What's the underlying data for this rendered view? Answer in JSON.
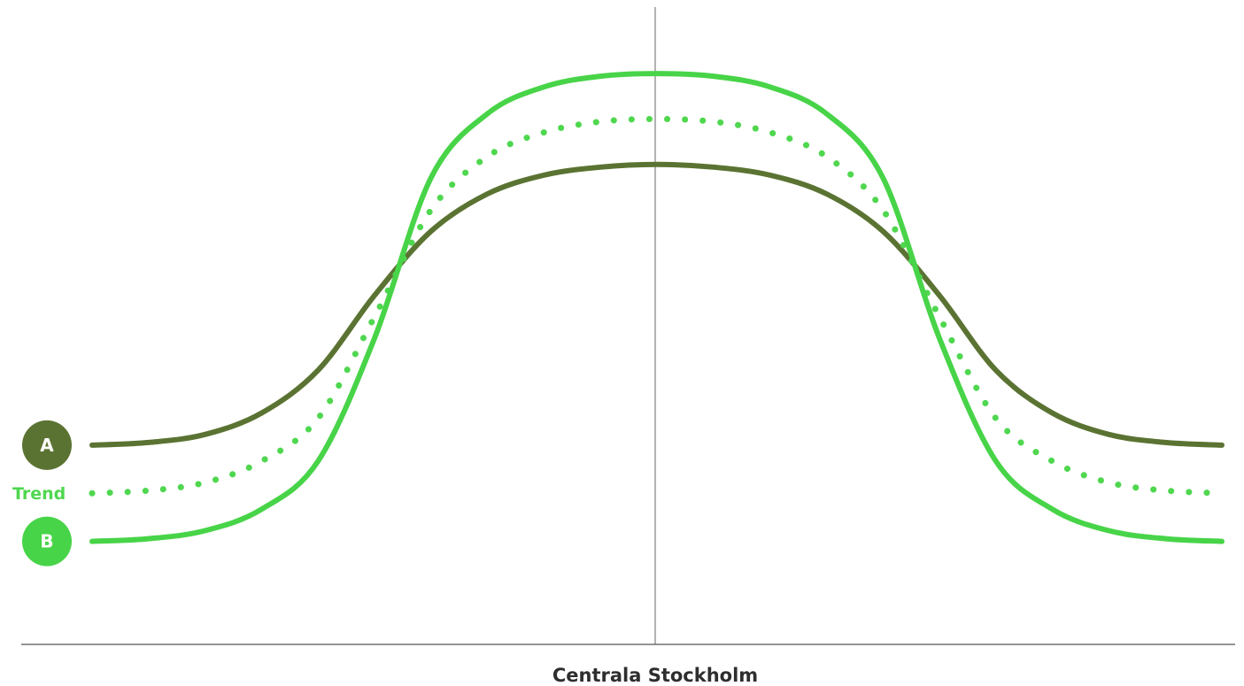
{
  "chart_data": {
    "type": "line",
    "title": "",
    "xlabel": "Centrala Stockholm",
    "ylabel": "",
    "x": [
      -1,
      -0.9,
      -0.8,
      -0.7,
      -0.6,
      -0.5,
      -0.4,
      -0.3,
      -0.2,
      -0.1,
      0,
      0.1,
      0.2,
      0.3,
      0.4,
      0.5,
      0.6,
      0.7,
      0.8,
      0.9,
      1
    ],
    "ylim": [
      0,
      100
    ],
    "grid": false,
    "center_line": true,
    "series": [
      {
        "name": "A",
        "badge": "A",
        "style": "solid",
        "color": "#5b7332",
        "values": [
          28,
          28.5,
          30,
          34,
          42,
          56,
          68,
          75,
          78.5,
          80,
          80.5,
          80,
          78.5,
          75,
          68,
          56,
          42,
          34,
          30,
          28.5,
          28
        ]
      },
      {
        "name": "Trend",
        "style": "dotted",
        "color": "#4fd74f",
        "values": [
          19,
          19.5,
          21,
          25,
          33,
          52,
          72,
          82,
          86.5,
          88.5,
          89,
          88.5,
          86.5,
          82,
          72,
          52,
          33,
          25,
          21,
          19.5,
          19
        ]
      },
      {
        "name": "B",
        "badge": "B",
        "style": "solid",
        "color": "#48d448",
        "values": [
          10,
          10.5,
          12,
          16,
          25,
          48,
          78,
          90,
          95,
          97,
          97.5,
          97,
          95,
          90,
          78,
          48,
          25,
          16,
          12,
          10.5,
          10
        ]
      }
    ]
  },
  "colors": {
    "axis": "#555555",
    "center_line": "#666666"
  }
}
